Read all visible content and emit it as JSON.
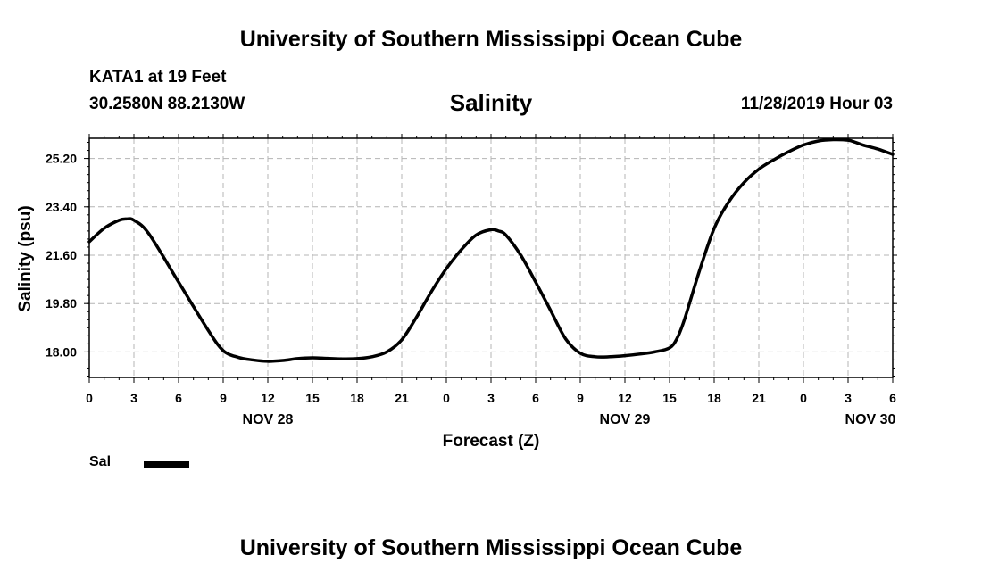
{
  "header": {
    "title": "University of Southern Mississippi Ocean Cube",
    "station": "KATA1 at 19 Feet",
    "coords": "30.2580N 88.2130W",
    "variable": "Salinity",
    "datetime": "11/28/2019 Hour 03"
  },
  "footer": {
    "title": "University of Southern Mississippi Ocean Cube"
  },
  "legend": {
    "label": "Sal",
    "color": "#000000"
  },
  "chart_data": {
    "type": "line",
    "title": "Salinity",
    "xlabel": "Forecast (Z)",
    "ylabel": "Salinity (psu)",
    "xlim": [
      0,
      54
    ],
    "ylim": [
      17.05,
      25.95
    ],
    "grid": true,
    "x_ticks": [
      0,
      3,
      6,
      9,
      12,
      15,
      18,
      21,
      24,
      27,
      30,
      33,
      36,
      39,
      42,
      45,
      48,
      51,
      54
    ],
    "x_tick_labels": [
      "0",
      "3",
      "6",
      "9",
      "12",
      "15",
      "18",
      "21",
      "0",
      "3",
      "6",
      "9",
      "12",
      "15",
      "18",
      "21",
      "0",
      "3",
      "6"
    ],
    "y_ticks": [
      18.0,
      19.8,
      21.6,
      23.4,
      25.2
    ],
    "y_tick_labels": [
      "18.00",
      "19.80",
      "21.60",
      "23.40",
      "25.20"
    ],
    "day_labels": [
      {
        "x": 12,
        "label": "NOV 28"
      },
      {
        "x": 36,
        "label": "NOV 29"
      },
      {
        "x": 52.5,
        "label": "NOV 30"
      }
    ],
    "series": [
      {
        "name": "Sal",
        "color": "#000000",
        "x": [
          0,
          1,
          2,
          2.5,
          3,
          4,
          6,
          8,
          9,
          10,
          11,
          12,
          13,
          14,
          15,
          16,
          17,
          18,
          19,
          20,
          21,
          22,
          23,
          24,
          25,
          26,
          27,
          27.5,
          28,
          29,
          30,
          31,
          32,
          33,
          34,
          35,
          36,
          37,
          38,
          39,
          39.5,
          40,
          41,
          42,
          43,
          44,
          45,
          46,
          47,
          48,
          49,
          50,
          51,
          51.5,
          52,
          53,
          54
        ],
        "y": [
          22.1,
          22.6,
          22.9,
          22.95,
          22.9,
          22.4,
          20.6,
          18.8,
          18.05,
          17.8,
          17.7,
          17.65,
          17.68,
          17.75,
          17.78,
          17.76,
          17.74,
          17.75,
          17.82,
          18.0,
          18.45,
          19.3,
          20.25,
          21.1,
          21.8,
          22.35,
          22.55,
          22.5,
          22.35,
          21.6,
          20.6,
          19.55,
          18.5,
          17.95,
          17.82,
          17.82,
          17.86,
          17.92,
          18.0,
          18.15,
          18.5,
          19.2,
          21.0,
          22.6,
          23.6,
          24.3,
          24.8,
          25.15,
          25.45,
          25.7,
          25.85,
          25.9,
          25.88,
          25.8,
          25.7,
          25.55,
          25.35
        ]
      }
    ]
  }
}
